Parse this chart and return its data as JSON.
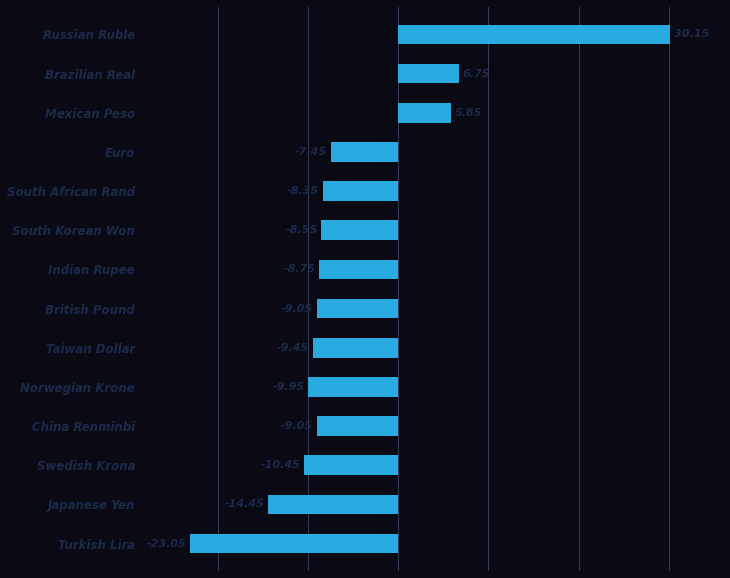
{
  "categories": [
    "Russian Ruble",
    "Brazilian Real",
    "Mexican Peso",
    "Euro",
    "South African Rand",
    "South Korean Won",
    "Indian Rupee",
    "British Pound",
    "Taiwan Dollar",
    "Norwegian Krone",
    "China Renminbi",
    "Swedish Krona",
    "Japanese Yen",
    "Turkish Lira"
  ],
  "values": [
    30.15,
    6.75,
    5.85,
    -7.45,
    -8.35,
    -8.55,
    -8.75,
    -9.05,
    -9.45,
    -9.95,
    -9.05,
    -10.45,
    -14.45,
    -23.05
  ],
  "labels": [
    "30.15",
    "6.75",
    "5.85",
    "-7.45",
    "-8.35",
    "-8.55",
    "-8.75",
    "-9.05",
    "-9.45",
    "-9.95",
    "-9.05",
    "-10.45",
    "-14.45",
    "-23.05"
  ],
  "bar_color": "#29ABE2",
  "background_color": "#0a0a14",
  "text_color": "#1a2a4a",
  "label_color": "#1a2a4a",
  "xlim": [
    -28,
    36
  ],
  "bar_height": 0.5,
  "grid_color": "#3a3a5a",
  "label_fontsize": 8.5,
  "value_fontsize": 8.0,
  "grid_positions": [
    -20,
    -10,
    0,
    10,
    20,
    30
  ]
}
